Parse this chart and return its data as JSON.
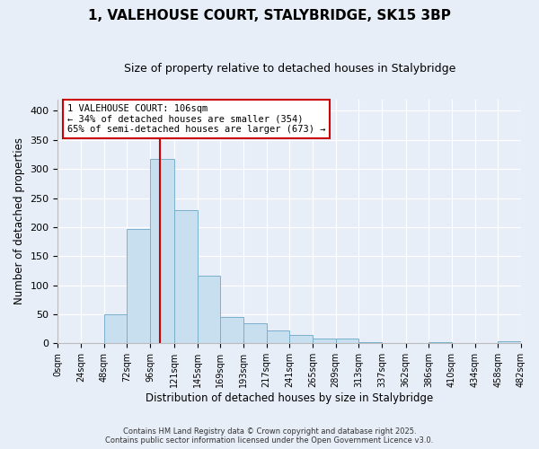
{
  "title": "1, VALEHOUSE COURT, STALYBRIDGE, SK15 3BP",
  "subtitle": "Size of property relative to detached houses in Stalybridge",
  "xlabel": "Distribution of detached houses by size in Stalybridge",
  "ylabel": "Number of detached properties",
  "bin_edges": [
    0,
    24,
    48,
    72,
    96,
    121,
    145,
    169,
    193,
    217,
    241,
    265,
    289,
    313,
    337,
    362,
    386,
    410,
    434,
    458,
    482
  ],
  "bin_labels": [
    "0sqm",
    "24sqm",
    "48sqm",
    "72sqm",
    "96sqm",
    "121sqm",
    "145sqm",
    "169sqm",
    "193sqm",
    "217sqm",
    "241sqm",
    "265sqm",
    "289sqm",
    "313sqm",
    "337sqm",
    "362sqm",
    "386sqm",
    "410sqm",
    "434sqm",
    "458sqm",
    "482sqm"
  ],
  "bar_heights": [
    1,
    0,
    50,
    197,
    317,
    229,
    117,
    45,
    34,
    22,
    15,
    8,
    8,
    2,
    0,
    0,
    2,
    0,
    0,
    3
  ],
  "bar_color": "#c8dff0",
  "bar_edgecolor": "#7ab0cc",
  "vline_x": 106,
  "vline_color": "#cc0000",
  "ylim": [
    0,
    420
  ],
  "yticks": [
    0,
    50,
    100,
    150,
    200,
    250,
    300,
    350,
    400
  ],
  "annotation_title": "1 VALEHOUSE COURT: 106sqm",
  "annotation_line1": "← 34% of detached houses are smaller (354)",
  "annotation_line2": "65% of semi-detached houses are larger (673) →",
  "annotation_box_facecolor": "#ffffff",
  "annotation_box_edgecolor": "#cc0000",
  "footer_line1": "Contains HM Land Registry data © Crown copyright and database right 2025.",
  "footer_line2": "Contains public sector information licensed under the Open Government Licence v3.0.",
  "background_color": "#e8eef8",
  "grid_color": "#ffffff",
  "figsize": [
    6.0,
    5.0
  ],
  "dpi": 100
}
